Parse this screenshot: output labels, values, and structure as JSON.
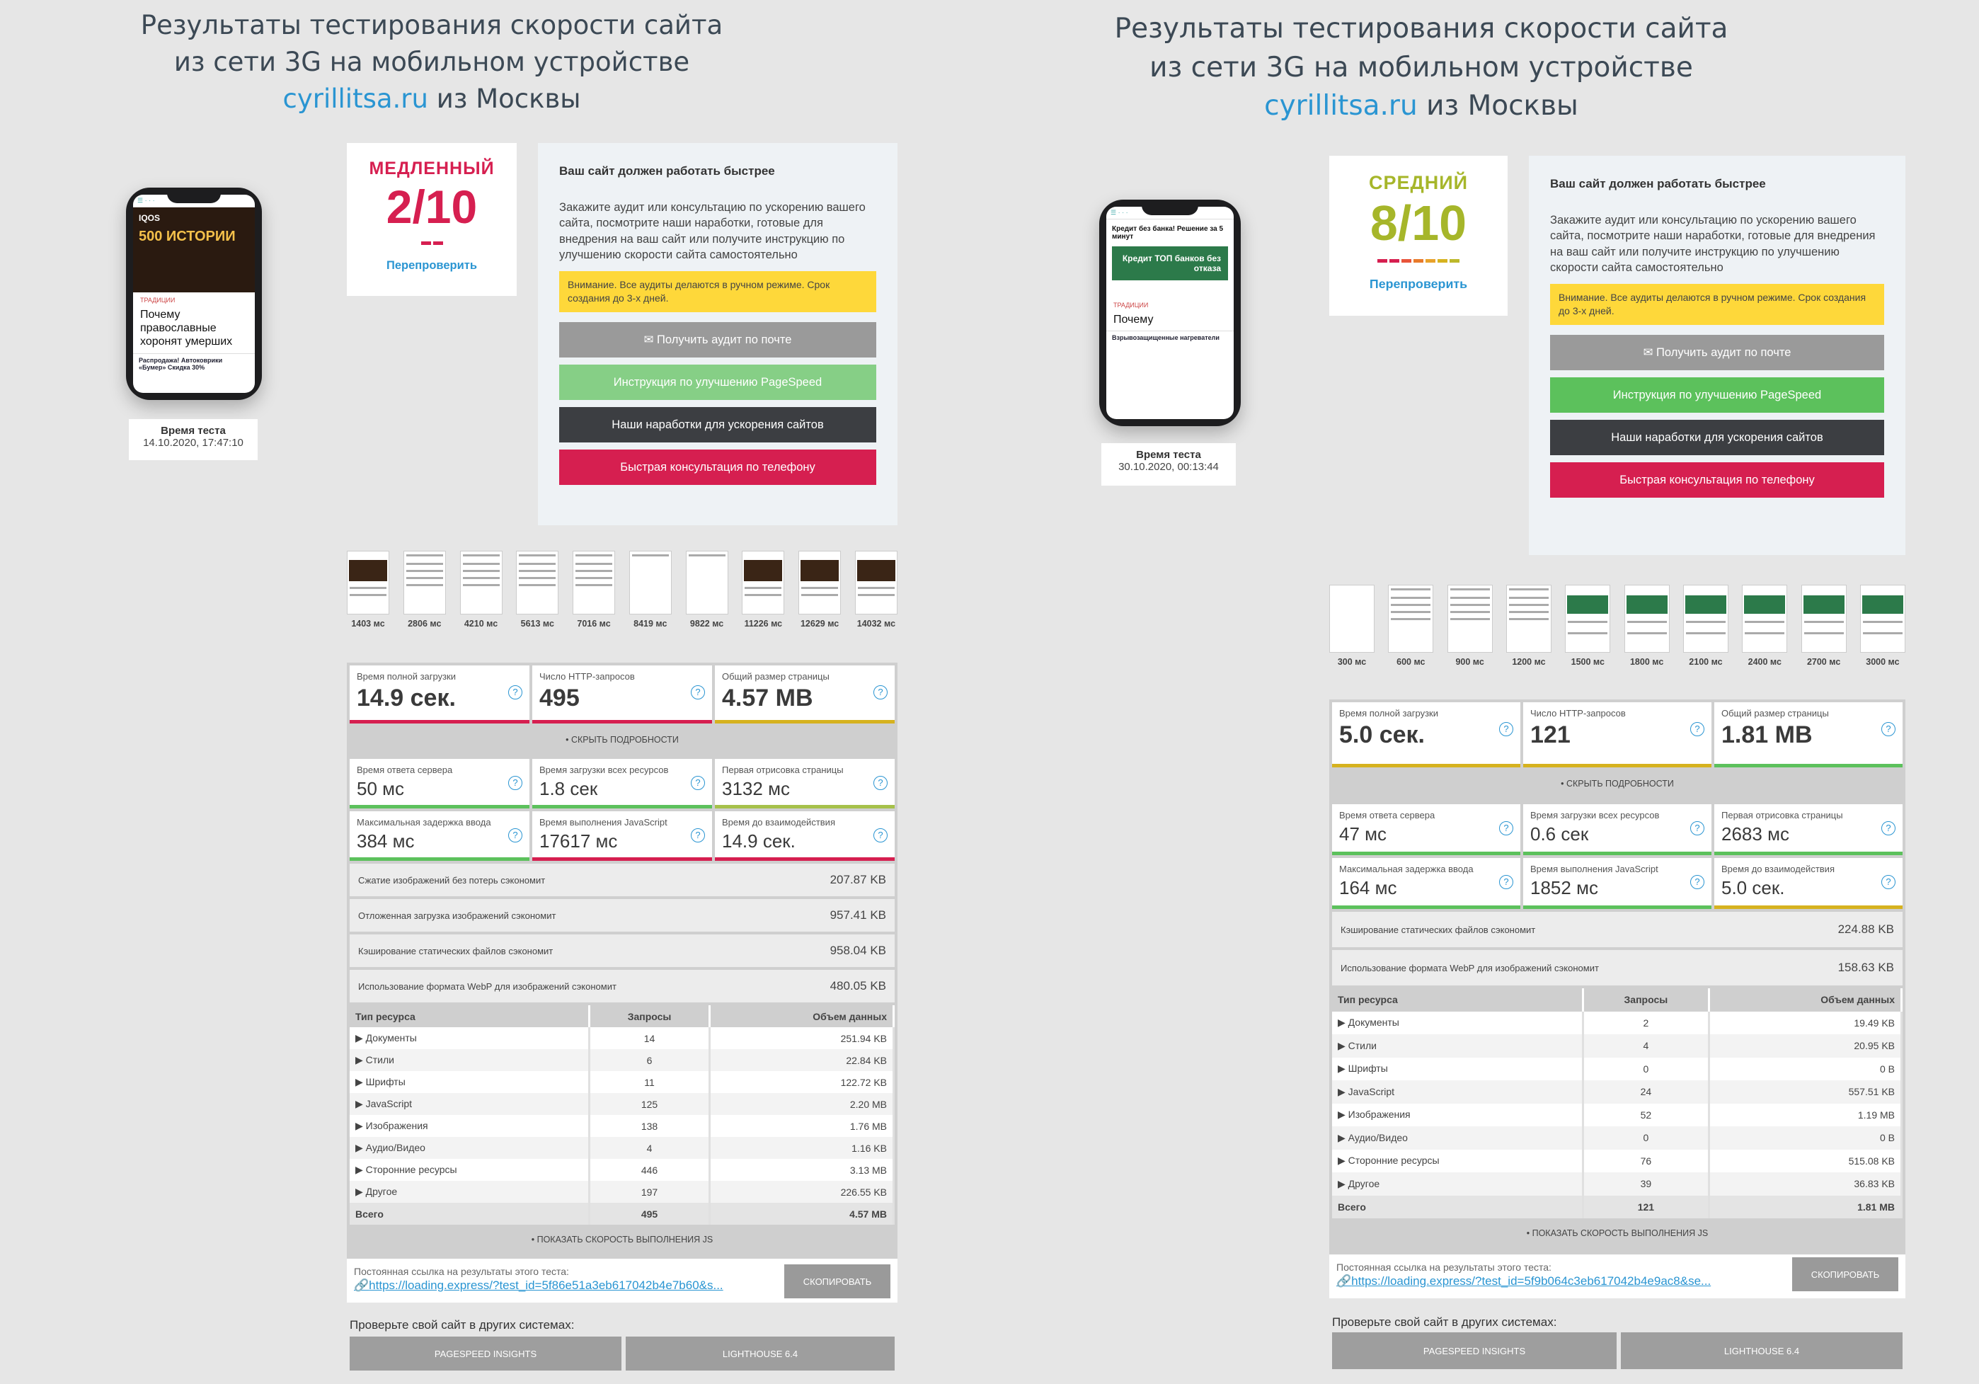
{
  "panels": [
    {
      "title": {
        "line1": "Результаты тестирования скорости сайта",
        "line2": "из сети 3G на мобильном устройстве",
        "site": "cyrillitsa.ru",
        "line3_suffix": " из Москвы"
      },
      "phone": {
        "tag": "ТРАДИЦИИ",
        "headline": "Почему православные хоронят умерших",
        "ad_brand": "IQOS",
        "ad_text": "500 ИСТОРИИ",
        "promo": "Распродажа! Автоковрики «Бумер» Скидка 30%"
      },
      "test_time": {
        "label": "Время теста",
        "value": "14.10.2020, 17:47:10"
      },
      "score": {
        "label": "МЕДЛЕННЫЙ",
        "value": "2/10",
        "color": "#d61f50",
        "recheck": "Перепроверить"
      },
      "promo": {
        "heading": "Ваш сайт должен работать быстрее",
        "text": "Закажите аудит или консультацию по ускорению вашего сайта, посмотрите наши наработки, готовые для внедрения на ваш сайт или получите инструкцию по улучшению скорости сайта самостоятельно",
        "warning": "Внимание. Все аудиты делаются в ручном режиме. Срок создания до 3-х дней.",
        "btn_email": "Получить аудит по почте",
        "btn_pagespeed": "Инструкция по улучшению PageSpeed",
        "btn_works": "Наши наработки для ускорения сайтов",
        "btn_phone": "Быстрая консультация по телефону"
      },
      "filmstrip": [
        "1403 мс",
        "2806 мс",
        "4210 мс",
        "5613 мс",
        "7016 мс",
        "8419 мс",
        "9822 мс",
        "11226 мс",
        "12629 мс",
        "14032 мс"
      ],
      "main_metrics": [
        {
          "label": "Время полной загрузки",
          "value": "14.9 сек.",
          "color": "#d61f50"
        },
        {
          "label": "Число HTTP-запросов",
          "value": "495",
          "color": "#d61f50"
        },
        {
          "label": "Общий размер страницы",
          "value": "4.57 MB",
          "color": "#d6b21f"
        }
      ],
      "toggle": "• СКРЫТЬ ПОДРОБНОСТИ",
      "detail_metrics": [
        {
          "label": "Время ответа сервера",
          "value": "50 мс",
          "color": "#5cc15c"
        },
        {
          "label": "Время загрузки всех ресурсов",
          "value": "1.8 сек",
          "color": "#5cc15c"
        },
        {
          "label": "Первая отрисовка страницы",
          "value": "3132 мс",
          "color": "#a6c14a"
        },
        {
          "label": "Максимальная задержка ввода",
          "value": "384 мс",
          "color": "#5cc15c"
        },
        {
          "label": "Время выполнения JavaScript",
          "value": "17617 мс",
          "color": "#d61f50"
        },
        {
          "label": "Время до взаимодействия",
          "value": "14.9 сек.",
          "color": "#d61f50"
        }
      ],
      "savings": [
        {
          "label": "Сжатие изображений без потерь сэкономит",
          "value": "207.87 KB"
        },
        {
          "label": "Отложенная загрузка изображений сэкономит",
          "value": "957.41 KB"
        },
        {
          "label": "Кэширование статических файлов сэкономит",
          "value": "958.04 KB"
        },
        {
          "label": "Использование формата WebP для изображений сэкономит",
          "value": "480.05 KB"
        }
      ],
      "table": {
        "headers": [
          "Тип ресурса",
          "Запросы",
          "Объем данных"
        ],
        "rows": [
          [
            "▶ Документы",
            "14",
            "251.94 KB"
          ],
          [
            "▶ Стили",
            "6",
            "22.84 KB"
          ],
          [
            "▶ Шрифты",
            "11",
            "122.72 KB"
          ],
          [
            "▶ JavaScript",
            "125",
            "2.20 MB"
          ],
          [
            "▶ Изображения",
            "138",
            "1.76 MB"
          ],
          [
            "▶ Аудио/Видео",
            "4",
            "1.16 KB"
          ],
          [
            "▶ Сторонние ресурсы",
            "446",
            "3.13 MB"
          ],
          [
            "▶ Другое",
            "197",
            "226.55 KB"
          ]
        ],
        "total": [
          "Всего",
          "495",
          "4.57 MB"
        ]
      },
      "show_js": "• ПОКАЗАТЬ СКОРОСТЬ ВЫПОЛНЕНИЯ JS",
      "link": {
        "label": "Постоянная ссылка на результаты этого теста:",
        "url": "https://loading.express/?test_id=5f86e51a3eb617042b4e7b60&s...",
        "copy": "СКОПИРОВАТЬ"
      },
      "check_other": "Проверьте свой сайт в других системах:",
      "ext_pagespeed": "PAGESPEED INSIGHTS",
      "ext_lighthouse": "LIGHTHOUSE 6.4"
    },
    {
      "title": {
        "line1": "Результаты тестирования скорости сайта",
        "line2": "из сети 3G на мобильном устройстве",
        "site": "cyrillitsa.ru",
        "line3_suffix": " из Москвы"
      },
      "phone": {
        "tag": "ТРАДИЦИИ",
        "headline": "Почему",
        "ad_brand": "Кредит без банка! Решение за 5 минут",
        "ad_text": "Кредит ТОП банков без отказа",
        "promo": "Взрывозащищенные нагреватели"
      },
      "test_time": {
        "label": "Время теста",
        "value": "30.10.2020, 00:13:44"
      },
      "score": {
        "label": "СРЕДНИЙ",
        "value": "8/10",
        "color": "#a6b62a",
        "recheck": "Перепроверить"
      },
      "promo": {
        "heading": "Ваш сайт должен работать быстрее",
        "text": "Закажите аудит или консультацию по ускорению вашего сайта, посмотрите наши наработки, готовые для внедрения на ваш сайт или получите инструкцию по улучшению скорости сайта самостоятельно",
        "warning": "Внимание. Все аудиты делаются в ручном режиме. Срок создания до 3-х дней.",
        "btn_email": "Получить аудит по почте",
        "btn_pagespeed": "Инструкция по улучшению PageSpeed",
        "btn_works": "Наши наработки для ускорения сайтов",
        "btn_phone": "Быстрая консультация по телефону"
      },
      "filmstrip": [
        "300 мс",
        "600 мс",
        "900 мс",
        "1200 мс",
        "1500 мс",
        "1800 мс",
        "2100 мс",
        "2400 мс",
        "2700 мс",
        "3000 мс"
      ],
      "main_metrics": [
        {
          "label": "Время полной загрузки",
          "value": "5.0 сек.",
          "color": "#d6b21f"
        },
        {
          "label": "Число HTTP-запросов",
          "value": "121",
          "color": "#d6b21f"
        },
        {
          "label": "Общий размер страницы",
          "value": "1.81 MB",
          "color": "#5cc15c"
        }
      ],
      "toggle": "• СКРЫТЬ ПОДРОБНОСТИ",
      "detail_metrics": [
        {
          "label": "Время ответа сервера",
          "value": "47 мс",
          "color": "#5cc15c"
        },
        {
          "label": "Время загрузки всех ресурсов",
          "value": "0.6 сек",
          "color": "#5cc15c"
        },
        {
          "label": "Первая отрисовка страницы",
          "value": "2683 мс",
          "color": "#5cc15c"
        },
        {
          "label": "Максимальная задержка ввода",
          "value": "164 мс",
          "color": "#5cc15c"
        },
        {
          "label": "Время выполнения JavaScript",
          "value": "1852 мс",
          "color": "#5cc15c"
        },
        {
          "label": "Время до взаимодействия",
          "value": "5.0 сек.",
          "color": "#d6b21f"
        }
      ],
      "savings": [
        {
          "label": "Кэширование статических файлов сэкономит",
          "value": "224.88 KB"
        },
        {
          "label": "Использование формата WebP для изображений сэкономит",
          "value": "158.63 KB"
        }
      ],
      "table": {
        "headers": [
          "Тип ресурса",
          "Запросы",
          "Объем данных"
        ],
        "rows": [
          [
            "▶ Документы",
            "2",
            "19.49 KB"
          ],
          [
            "▶ Стили",
            "4",
            "20.95 KB"
          ],
          [
            "▶ Шрифты",
            "0",
            "0 B"
          ],
          [
            "▶ JavaScript",
            "24",
            "557.51 KB"
          ],
          [
            "▶ Изображения",
            "52",
            "1.19 MB"
          ],
          [
            "▶ Аудио/Видео",
            "0",
            "0 B"
          ],
          [
            "▶ Сторонние ресурсы",
            "76",
            "515.08 KB"
          ],
          [
            "▶ Другое",
            "39",
            "36.83 KB"
          ]
        ],
        "total": [
          "Всего",
          "121",
          "1.81 MB"
        ]
      },
      "show_js": "• ПОКАЗАТЬ СКОРОСТЬ ВЫПОЛНЕНИЯ JS",
      "link": {
        "label": "Постоянная ссылка на результаты этого теста:",
        "url": "https://loading.express/?test_id=5f9b064c3eb617042b4e9ac8&se...",
        "copy": "СКОПИРОВАТЬ"
      },
      "check_other": "Проверьте свой сайт в других системах:",
      "ext_pagespeed": "PAGESPEED INSIGHTS",
      "ext_lighthouse": "LIGHTHOUSE 6.4"
    }
  ]
}
